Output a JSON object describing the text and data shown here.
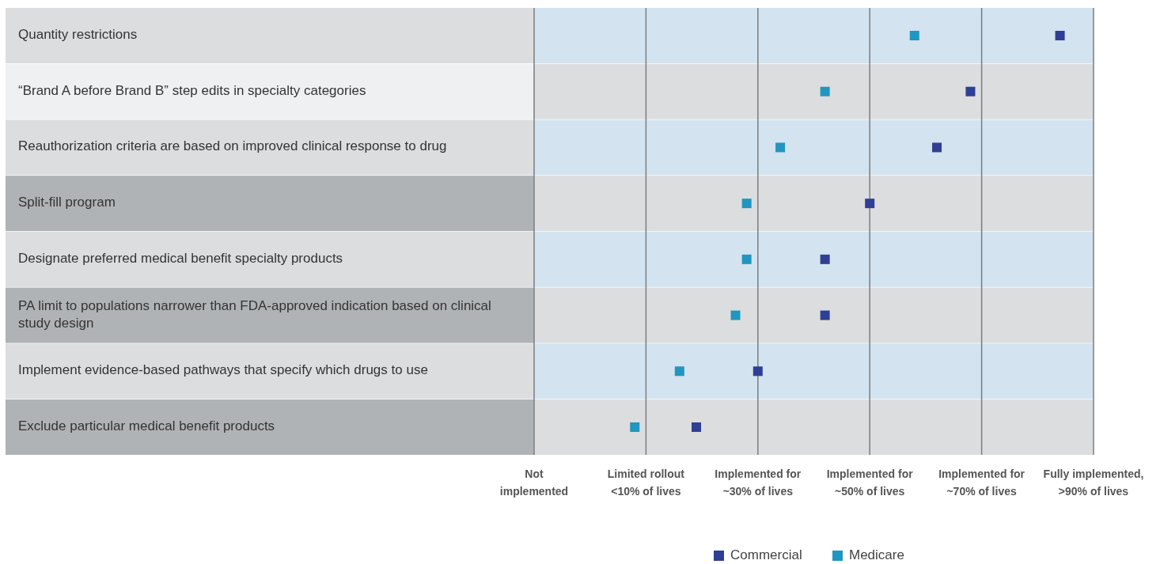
{
  "chart_data": {
    "type": "scatter",
    "orientation": "horizontal",
    "categories": [
      "Quantity restrictions",
      "“Brand A before Brand B” step edits in specialty categories",
      "Reauthorization criteria are based on improved clinical response to drug",
      "Split-fill program",
      "Designate preferred medical benefit specialty products",
      "PA limit to populations narrower than FDA-approved indication based on clinical study design",
      "Implement evidence-based pathways that specify which drugs to use",
      "Exclude particular medical benefit products"
    ],
    "series": [
      {
        "name": "Commercial",
        "color": "#2e3f95",
        "values": [
          84,
          68,
          62,
          50,
          42,
          42,
          30,
          19
        ]
      },
      {
        "name": "Medicare",
        "color": "#1f97c0",
        "values": [
          58,
          42,
          34,
          28,
          28,
          26,
          16,
          8
        ]
      }
    ],
    "xlim": [
      -10,
      90
    ],
    "xticks": [
      {
        "value": -10,
        "label": "Not\nimplemented"
      },
      {
        "value": 10,
        "label": "Limited rollout\n<10% of lives"
      },
      {
        "value": 30,
        "label": "Implemented for\n~30% of lives"
      },
      {
        "value": 50,
        "label": "Implemented for\n~50% of lives"
      },
      {
        "value": 70,
        "label": "Implemented for\n~70% of lives"
      },
      {
        "value": 90,
        "label": "Fully implemented,\n>90% of lives"
      }
    ],
    "grid": "x",
    "legend": "bottom",
    "marker": "square"
  }
}
